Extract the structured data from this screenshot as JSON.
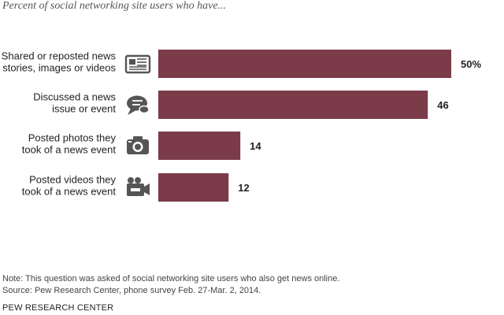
{
  "subtitle": "Percent of social networking site users who have...",
  "chart_data": {
    "type": "bar",
    "orientation": "horizontal",
    "categories": [
      [
        "Shared or reposted news",
        "stories, images or videos"
      ],
      [
        "Discussed a news",
        "issue or event"
      ],
      [
        "Posted photos they",
        "took of a news event"
      ],
      [
        "Posted videos they",
        "took of a news event"
      ]
    ],
    "values": [
      50,
      46,
      14,
      12
    ],
    "value_labels": [
      "50%",
      "46",
      "14",
      "12"
    ],
    "icons": [
      "newspaper-icon",
      "chat-bubble-icon",
      "camera-icon",
      "video-camera-icon"
    ],
    "bar_color": "#7b3b49",
    "icon_color": "#555555",
    "xlim": [
      0,
      50
    ],
    "title": "",
    "xlabel": "",
    "ylabel": "",
    "grid": false
  },
  "notes": {
    "note": "Note: This question was asked of social networking site users who also get news online.",
    "source": "Source: Pew Research Center, phone survey Feb. 27-Mar. 2, 2014."
  },
  "brand": "PEW RESEARCH CENTER"
}
